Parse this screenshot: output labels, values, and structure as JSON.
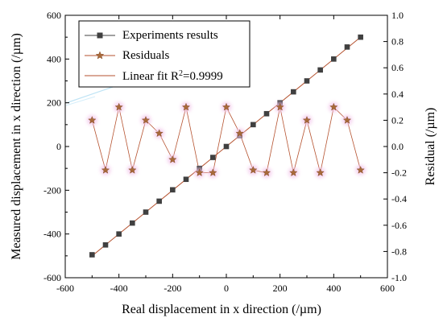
{
  "chart_data": {
    "type": "scatter",
    "title": "",
    "xlabel": "Real displacement in x direction (/µm)",
    "ylabel": "Measured displacement in x direction (/µm)",
    "y2label": "Residual (/µm)",
    "xlim": [
      -600,
      600
    ],
    "ylim": [
      -600,
      600
    ],
    "y2lim": [
      -1.0,
      1.0
    ],
    "xticks": [
      -600,
      -400,
      -200,
      0,
      200,
      400,
      600
    ],
    "yticks": [
      -600,
      -400,
      -200,
      0,
      200,
      400,
      600
    ],
    "y2ticks": [
      -1.0,
      -0.8,
      -0.6,
      -0.4,
      -0.2,
      0.0,
      0.2,
      0.4,
      0.6,
      0.8,
      1.0
    ],
    "y2tick_labels": [
      "-1.0",
      "-0.8",
      "-0.6",
      "-0.4",
      "-0.2",
      "0.0",
      "0.2",
      "0.4",
      "0.6",
      "0.8",
      "1.0"
    ],
    "grid": false,
    "legend_position": "top-left",
    "x": [
      -500,
      -450,
      -400,
      -350,
      -300,
      -250,
      -200,
      -150,
      -100,
      -50,
      0,
      50,
      100,
      150,
      200,
      250,
      300,
      350,
      400,
      450,
      500
    ],
    "series": [
      {
        "name": "Experiments results",
        "axis": "left",
        "marker": "square",
        "color": "#404040",
        "values": [
          -495,
          -450,
          -400,
          -350,
          -300,
          -250,
          -198,
          -150,
          -100,
          -50,
          0,
          50,
          100,
          150,
          200,
          250,
          300,
          350,
          400,
          455,
          500
        ]
      },
      {
        "name": "Residuals",
        "axis": "right",
        "marker": "star",
        "color": "#b5522f",
        "values": [
          0.2,
          -0.18,
          0.3,
          -0.18,
          0.2,
          0.1,
          -0.1,
          0.3,
          -0.2,
          -0.2,
          0.3,
          0.1,
          -0.18,
          -0.2,
          0.3,
          -0.2,
          0.2,
          -0.2,
          0.3,
          0.2,
          -0.18
        ]
      }
    ],
    "fit": {
      "name_prefix": "Linear fit R",
      "name_sup": "2",
      "name_suffix": "=0.9999",
      "color": "#b5522f",
      "x": [
        -500,
        500
      ],
      "y": [
        -500,
        500
      ]
    }
  }
}
